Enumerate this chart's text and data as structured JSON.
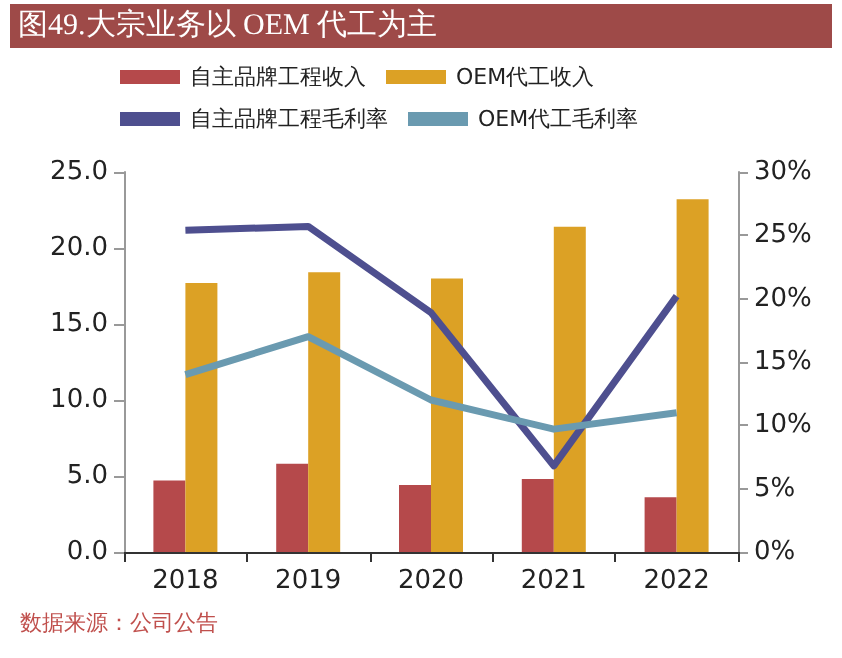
{
  "chart_data": {
    "type": "bar",
    "title": "图49.大宗业务以 OEM 代工为主",
    "categories": [
      "2018",
      "2019",
      "2020",
      "2021",
      "2022"
    ],
    "series": [
      {
        "name": "自主品牌工程收入",
        "color": "#b5494b",
        "values": [
          4.7,
          5.8,
          4.4,
          4.8,
          3.6
        ]
      },
      {
        "name": "OEM代工收入",
        "color": "#dca125",
        "values": [
          17.7,
          18.4,
          18.0,
          21.4,
          23.2
        ]
      },
      {
        "name": "自主品牌工程毛利率",
        "type": "line",
        "axis": "y2",
        "color": "#4e4f8f",
        "values": [
          25.4,
          25.7,
          18.9,
          6.8,
          20.2
        ]
      },
      {
        "name": "OEM代工毛利率",
        "type": "line",
        "axis": "y2",
        "color": "#6a9ab0",
        "values": [
          14.0,
          17.0,
          12.0,
          9.7,
          11.0
        ]
      }
    ],
    "ylim": [
      0,
      25
    ],
    "yticks": [
      {
        "value": 0,
        "label": "0.0"
      },
      {
        "value": 5,
        "label": "5.0"
      },
      {
        "value": 10,
        "label": "10.0"
      },
      {
        "value": 15,
        "label": "15.0"
      },
      {
        "value": 20,
        "label": "20.0"
      },
      {
        "value": 25,
        "label": "25.0"
      }
    ],
    "y2lim": [
      0,
      30
    ],
    "y2ticks": [
      {
        "value": 0,
        "label": "0%"
      },
      {
        "value": 5,
        "label": "5%"
      },
      {
        "value": 10,
        "label": "10%"
      },
      {
        "value": 15,
        "label": "15%"
      },
      {
        "value": 20,
        "label": "20%"
      },
      {
        "value": 25,
        "label": "25%"
      },
      {
        "value": 30,
        "label": "30%"
      }
    ],
    "legend": "top",
    "grid": false,
    "marker": "none",
    "annotations": [
      "数据来源：公司公告"
    ]
  }
}
